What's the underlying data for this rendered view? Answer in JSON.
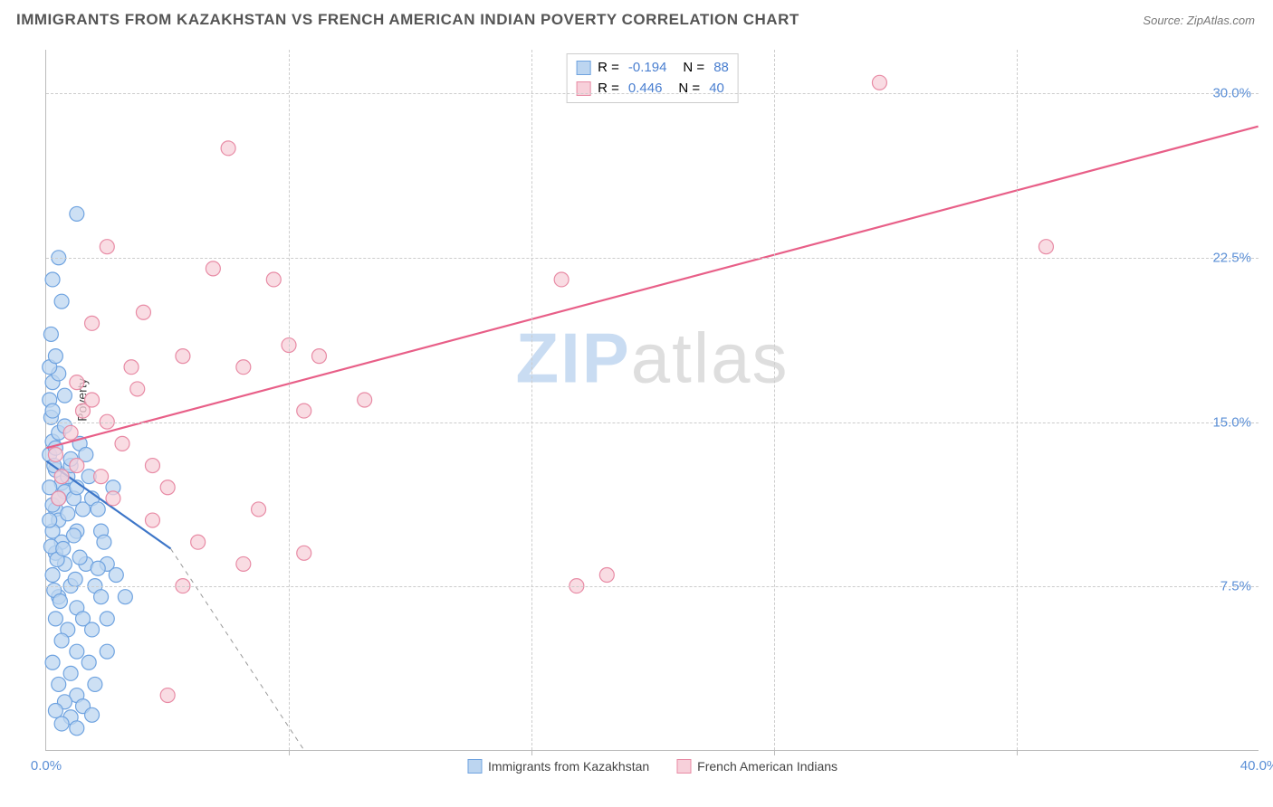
{
  "header": {
    "title": "IMMIGRANTS FROM KAZAKHSTAN VS FRENCH AMERICAN INDIAN POVERTY CORRELATION CHART",
    "source_label": "Source:",
    "source_name": "ZipAtlas.com"
  },
  "chart": {
    "type": "scatter",
    "ylabel": "Poverty",
    "watermark_a": "ZIP",
    "watermark_b": "atlas",
    "xlim": [
      0,
      40
    ],
    "ylim": [
      0,
      32
    ],
    "x_ticks": [
      0.0,
      40.0
    ],
    "x_tick_labels": [
      "0.0%",
      "40.0%"
    ],
    "x_gridlines": [
      8,
      16,
      24,
      32
    ],
    "y_ticks": [
      7.5,
      15.0,
      22.5,
      30.0
    ],
    "y_tick_labels": [
      "7.5%",
      "15.0%",
      "22.5%",
      "30.0%"
    ],
    "background_color": "#ffffff",
    "grid_color": "#cccccc",
    "axis_color": "#bbbbbb",
    "tick_label_color": "#5b8fd6",
    "series": [
      {
        "name": "Immigrants from Kazakhstan",
        "marker_fill": "#bcd5f0",
        "marker_stroke": "#6fa3e0",
        "line_color": "#3d76c8",
        "marker_radius": 8,
        "R": "-0.194",
        "N": "88",
        "trend": {
          "x1": 0,
          "y1": 13.2,
          "x2": 4.1,
          "y2": 9.2,
          "dash_to_x": 8.5,
          "dash_to_y": 0
        },
        "points": [
          [
            0.1,
            13.5
          ],
          [
            0.2,
            14.1
          ],
          [
            0.15,
            15.2
          ],
          [
            0.3,
            12.8
          ],
          [
            0.25,
            13.0
          ],
          [
            0.4,
            14.5
          ],
          [
            0.1,
            16.0
          ],
          [
            0.2,
            15.5
          ],
          [
            0.5,
            12.2
          ],
          [
            0.6,
            11.8
          ],
          [
            0.3,
            11.0
          ],
          [
            0.7,
            12.5
          ],
          [
            0.8,
            13.0
          ],
          [
            0.4,
            10.5
          ],
          [
            0.9,
            11.5
          ],
          [
            1.0,
            12.0
          ],
          [
            0.2,
            10.0
          ],
          [
            0.5,
            9.5
          ],
          [
            1.2,
            11.0
          ],
          [
            1.4,
            12.5
          ],
          [
            0.3,
            9.0
          ],
          [
            0.6,
            8.5
          ],
          [
            1.0,
            10.0
          ],
          [
            1.5,
            11.5
          ],
          [
            0.2,
            8.0
          ],
          [
            0.8,
            7.5
          ],
          [
            1.3,
            8.5
          ],
          [
            1.8,
            10.0
          ],
          [
            0.4,
            7.0
          ],
          [
            1.0,
            6.5
          ],
          [
            1.6,
            7.5
          ],
          [
            2.0,
            8.5
          ],
          [
            0.3,
            6.0
          ],
          [
            0.7,
            5.5
          ],
          [
            1.2,
            6.0
          ],
          [
            1.8,
            7.0
          ],
          [
            2.3,
            8.0
          ],
          [
            0.5,
            5.0
          ],
          [
            1.0,
            4.5
          ],
          [
            1.5,
            5.5
          ],
          [
            2.0,
            6.0
          ],
          [
            2.6,
            7.0
          ],
          [
            0.2,
            4.0
          ],
          [
            0.8,
            3.5
          ],
          [
            1.4,
            4.0
          ],
          [
            2.0,
            4.5
          ],
          [
            0.4,
            3.0
          ],
          [
            1.0,
            2.5
          ],
          [
            1.6,
            3.0
          ],
          [
            0.6,
            2.2
          ],
          [
            1.2,
            2.0
          ],
          [
            0.3,
            1.8
          ],
          [
            0.8,
            1.5
          ],
          [
            1.5,
            1.6
          ],
          [
            0.5,
            1.2
          ],
          [
            1.0,
            1.0
          ],
          [
            0.2,
            16.8
          ],
          [
            0.4,
            17.2
          ],
          [
            0.6,
            16.2
          ],
          [
            0.1,
            17.5
          ],
          [
            0.3,
            18.0
          ],
          [
            0.15,
            19.0
          ],
          [
            0.5,
            20.5
          ],
          [
            0.2,
            21.5
          ],
          [
            0.4,
            22.5
          ],
          [
            1.0,
            24.5
          ],
          [
            0.1,
            12.0
          ],
          [
            0.3,
            13.8
          ],
          [
            0.6,
            14.8
          ],
          [
            0.2,
            11.2
          ],
          [
            0.8,
            13.3
          ],
          [
            1.1,
            14.0
          ],
          [
            0.1,
            10.5
          ],
          [
            0.4,
            11.5
          ],
          [
            0.7,
            10.8
          ],
          [
            1.3,
            13.5
          ],
          [
            0.9,
            9.8
          ],
          [
            1.7,
            11.0
          ],
          [
            2.2,
            12.0
          ],
          [
            0.15,
            9.3
          ],
          [
            0.35,
            8.7
          ],
          [
            0.55,
            9.2
          ],
          [
            1.1,
            8.8
          ],
          [
            1.9,
            9.5
          ],
          [
            0.25,
            7.3
          ],
          [
            0.45,
            6.8
          ],
          [
            0.95,
            7.8
          ],
          [
            1.7,
            8.3
          ]
        ]
      },
      {
        "name": "French American Indians",
        "marker_fill": "#f7d0da",
        "marker_stroke": "#e88ba5",
        "line_color": "#e85f88",
        "marker_radius": 8,
        "R": "0.446",
        "N": "40",
        "trend": {
          "x1": 0,
          "y1": 13.8,
          "x2": 40,
          "y2": 28.5
        },
        "points": [
          [
            0.3,
            13.5
          ],
          [
            0.8,
            14.5
          ],
          [
            1.2,
            15.5
          ],
          [
            0.5,
            12.5
          ],
          [
            1.5,
            16.0
          ],
          [
            2.0,
            15.0
          ],
          [
            1.0,
            13.0
          ],
          [
            2.5,
            14.0
          ],
          [
            3.0,
            16.5
          ],
          [
            0.4,
            11.5
          ],
          [
            1.8,
            12.5
          ],
          [
            3.5,
            13.0
          ],
          [
            2.2,
            11.5
          ],
          [
            4.0,
            12.0
          ],
          [
            1.0,
            16.8
          ],
          [
            2.8,
            17.5
          ],
          [
            4.5,
            18.0
          ],
          [
            1.5,
            19.5
          ],
          [
            3.2,
            20.0
          ],
          [
            6.5,
            17.5
          ],
          [
            8.0,
            18.5
          ],
          [
            5.5,
            22.0
          ],
          [
            7.5,
            21.5
          ],
          [
            6.0,
            27.5
          ],
          [
            9.0,
            18.0
          ],
          [
            10.5,
            16.0
          ],
          [
            3.5,
            10.5
          ],
          [
            5.0,
            9.5
          ],
          [
            7.0,
            11.0
          ],
          [
            4.5,
            7.5
          ],
          [
            6.5,
            8.5
          ],
          [
            8.5,
            9.0
          ],
          [
            4.0,
            2.5
          ],
          [
            17.0,
            21.5
          ],
          [
            18.5,
            8.0
          ],
          [
            17.5,
            7.5
          ],
          [
            27.5,
            30.5
          ],
          [
            33.0,
            23.0
          ],
          [
            2.0,
            23.0
          ],
          [
            8.5,
            15.5
          ]
        ]
      }
    ],
    "legend": {
      "r_label": "R =",
      "n_label": "N ="
    }
  }
}
